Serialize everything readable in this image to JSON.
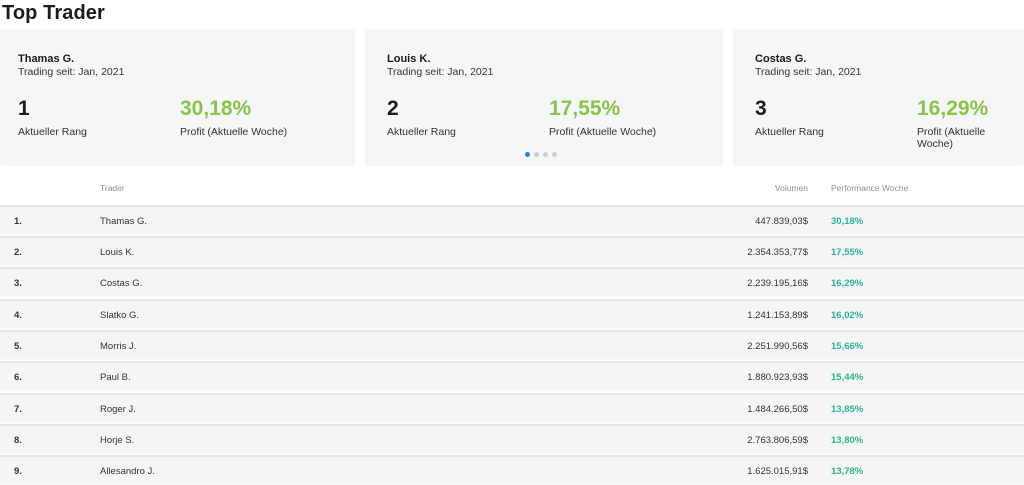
{
  "page": {
    "title": "Top Trader"
  },
  "cards": [
    {
      "name": "Thamas G.",
      "since": "Trading seit: Jan, 2021",
      "rank": "1",
      "rank_label": "Aktueller Rang",
      "profit": "30,18%",
      "profit_label": "Profit (Aktuelle Woche)"
    },
    {
      "name": "Louis K.",
      "since": "Trading seit: Jan, 2021",
      "rank": "2",
      "rank_label": "Aktueller Rang",
      "profit": "17,55%",
      "profit_label": "Profit (Aktuelle Woche)"
    },
    {
      "name": "Costas G.",
      "since": "Trading seit: Jan, 2021",
      "rank": "3",
      "rank_label": "Aktueller Rang",
      "profit": "16,29%",
      "profit_label": "Profit (Aktuelle Woche)"
    }
  ],
  "carousel": {
    "dot_count": 4,
    "active_index": 0
  },
  "table": {
    "headers": {
      "trader": "Trader",
      "volume": "Volumen",
      "performance": "Performance Woche"
    },
    "rows": [
      {
        "rank": "1.",
        "trader": "Thamas G.",
        "volume": "447.839,03$",
        "performance": "30,18%"
      },
      {
        "rank": "2.",
        "trader": "Louis K.",
        "volume": "2.354.353,77$",
        "performance": "17,55%"
      },
      {
        "rank": "3.",
        "trader": "Costas G.",
        "volume": "2.239.195,16$",
        "performance": "16,29%"
      },
      {
        "rank": "4.",
        "trader": "Slatko G.",
        "volume": "1.241.153,89$",
        "performance": "16,02%"
      },
      {
        "rank": "5.",
        "trader": "Morris J.",
        "volume": "2.251.990,56$",
        "performance": "15,66%"
      },
      {
        "rank": "6.",
        "trader": "Paul B.",
        "volume": "1.880.923,93$",
        "performance": "15,44%"
      },
      {
        "rank": "7.",
        "trader": "Roger J.",
        "volume": "1.484.266,50$",
        "performance": "13,85%"
      },
      {
        "rank": "8.",
        "trader": "Horje S.",
        "volume": "2.763.806,59$",
        "performance": "13,80%"
      },
      {
        "rank": "9.",
        "trader": "Allesandro J.",
        "volume": "1.625.015,91$",
        "performance": "13,78%"
      }
    ]
  },
  "colors": {
    "profit_green": "#8bc34a",
    "performance_teal": "#2fb38a",
    "card_bg": "#f5f6f8",
    "dot_active": "#2d7fe0"
  }
}
